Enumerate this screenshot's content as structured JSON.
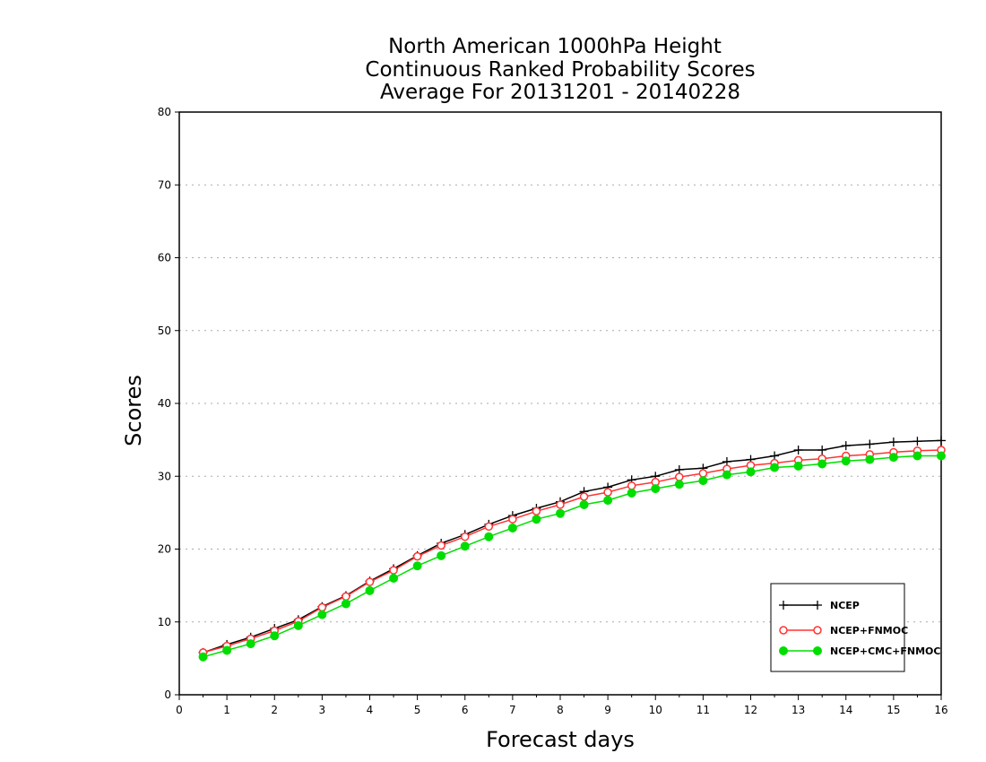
{
  "chart_data": {
    "type": "line",
    "title_lines": [
      "North American 1000hPa Height",
      "Continuous Ranked Probability Scores",
      "Average For 20131201 - 20140228"
    ],
    "xlabel": "Forecast days",
    "ylabel": "Scores",
    "xlim": [
      0,
      16
    ],
    "ylim": [
      0,
      80
    ],
    "x_ticks": [
      0,
      1,
      2,
      3,
      4,
      5,
      6,
      7,
      8,
      9,
      10,
      11,
      12,
      13,
      14,
      15,
      16
    ],
    "y_ticks": [
      0,
      10,
      20,
      30,
      40,
      50,
      60,
      70,
      80
    ],
    "grid": "horizontal-dotted",
    "legend_position": "bottom-right",
    "x": [
      0.5,
      1.0,
      1.5,
      2.0,
      2.5,
      3.0,
      3.5,
      4.0,
      4.5,
      5.0,
      5.5,
      6.0,
      6.5,
      7.0,
      7.5,
      8.0,
      8.5,
      9.0,
      9.5,
      10.0,
      10.5,
      11.0,
      11.5,
      12.0,
      12.5,
      13.0,
      13.5,
      14.0,
      14.5,
      15.0,
      15.5,
      16.0
    ],
    "series": [
      {
        "name": "NCEP",
        "color": "#000000",
        "marker": "plus",
        "values": [
          5.8,
          6.9,
          7.9,
          9.1,
          10.3,
          12.1,
          13.6,
          15.6,
          17.3,
          19.1,
          20.8,
          22.0,
          23.4,
          24.6,
          25.6,
          26.5,
          27.9,
          28.5,
          29.5,
          30.0,
          30.9,
          31.1,
          32.0,
          32.3,
          32.8,
          33.6,
          33.6,
          34.2,
          34.4,
          34.7,
          34.8,
          34.9
        ]
      },
      {
        "name": "NCEP+FNMOC",
        "color": "#ff3333",
        "marker": "open-circle",
        "values": [
          5.8,
          6.7,
          7.7,
          8.8,
          10.1,
          12.0,
          13.5,
          15.5,
          17.1,
          19.0,
          20.5,
          21.7,
          23.1,
          24.1,
          25.2,
          26.1,
          27.2,
          27.8,
          28.7,
          29.2,
          29.9,
          30.4,
          31.0,
          31.5,
          31.8,
          32.2,
          32.4,
          32.8,
          33.0,
          33.3,
          33.5,
          33.6
        ]
      },
      {
        "name": "NCEP+CMC+FNMOC",
        "color": "#00dd00",
        "marker": "filled-circle",
        "values": [
          5.2,
          6.1,
          7.0,
          8.1,
          9.5,
          11.0,
          12.5,
          14.3,
          16.0,
          17.7,
          19.1,
          20.4,
          21.7,
          22.9,
          24.1,
          24.9,
          26.1,
          26.7,
          27.7,
          28.3,
          28.9,
          29.4,
          30.2,
          30.6,
          31.2,
          31.4,
          31.7,
          32.1,
          32.3,
          32.6,
          32.8,
          32.8
        ]
      }
    ]
  }
}
